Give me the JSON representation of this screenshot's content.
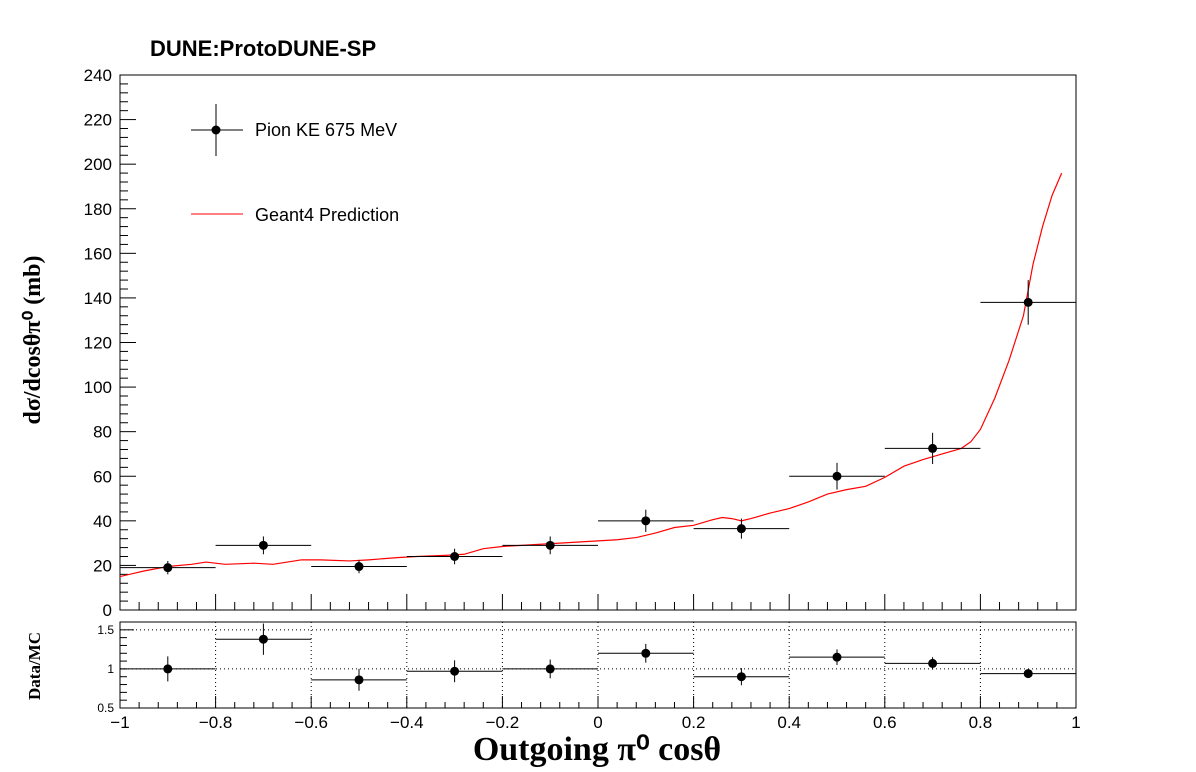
{
  "chart_data": [
    {
      "type": "scatter",
      "title": "DUNE:ProtoDUNE-SP",
      "xlabel": "Outgoing  π⁰ cosθ",
      "ylabel": "dσ/dcosθπ⁰ (mb)",
      "xlim": [
        -1,
        1
      ],
      "ylim": [
        0,
        240
      ],
      "x_ticks": [
        "−1",
        "−0.8",
        "−0.6",
        "−0.4",
        "−0.2",
        "0",
        "0.2",
        "0.4",
        "0.6",
        "0.8",
        "1"
      ],
      "y_ticks": [
        "0",
        "20",
        "40",
        "60",
        "80",
        "100",
        "120",
        "140",
        "160",
        "180",
        "200",
        "220",
        "240"
      ],
      "legend": {
        "placement": "top-left",
        "entries": [
          "Pion KE 675 MeV",
          "Geant4 Prediction"
        ]
      },
      "series": [
        {
          "name": "Pion KE 675 MeV",
          "color": "#000000",
          "x": [
            -0.9,
            -0.7,
            -0.5,
            -0.3,
            -0.1,
            0.1,
            0.3,
            0.5,
            0.7,
            0.9
          ],
          "y": [
            19,
            29,
            19.5,
            24,
            29,
            40,
            36.5,
            60,
            72.5,
            138
          ],
          "x_err": [
            0.1,
            0.1,
            0.1,
            0.1,
            0.1,
            0.1,
            0.1,
            0.1,
            0.1,
            0.1
          ],
          "y_err": [
            3,
            4,
            3,
            3.5,
            4,
            5,
            4.5,
            6,
            7,
            10
          ]
        },
        {
          "name": "Geant4 Prediction",
          "color": "#ff0000",
          "x": [
            -1.0,
            -0.95,
            -0.9,
            -0.85,
            -0.82,
            -0.78,
            -0.72,
            -0.68,
            -0.62,
            -0.58,
            -0.52,
            -0.48,
            -0.42,
            -0.38,
            -0.32,
            -0.28,
            -0.24,
            -0.2,
            -0.16,
            -0.12,
            -0.08,
            -0.04,
            0.0,
            0.04,
            0.08,
            0.12,
            0.16,
            0.2,
            0.24,
            0.26,
            0.28,
            0.3,
            0.32,
            0.36,
            0.4,
            0.44,
            0.48,
            0.52,
            0.56,
            0.6,
            0.64,
            0.68,
            0.72,
            0.76,
            0.78,
            0.8,
            0.83,
            0.86,
            0.89,
            0.91,
            0.93,
            0.95,
            0.97
          ],
          "y": [
            15,
            17.5,
            19.5,
            20.5,
            21.5,
            20.5,
            21,
            20.5,
            22.5,
            22.5,
            22,
            22.5,
            23.5,
            24,
            24.5,
            25,
            27.5,
            28.5,
            29,
            29.5,
            30,
            30.5,
            31,
            31.5,
            32.5,
            34.5,
            37,
            38,
            40.5,
            41.5,
            41,
            40,
            41,
            43.5,
            45.5,
            48.5,
            52,
            54,
            55.5,
            59.5,
            64.5,
            67.5,
            70,
            72.5,
            75.5,
            81,
            95,
            112,
            132,
            155,
            172,
            186,
            196
          ]
        }
      ]
    },
    {
      "type": "scatter",
      "ylabel": "Data/MC",
      "xlim": [
        -1,
        1
      ],
      "ylim": [
        0.5,
        1.6
      ],
      "y_ticks": [
        "0.5",
        "1",
        "1.5"
      ],
      "grid": true,
      "series": [
        {
          "color": "#000000",
          "x": [
            -0.9,
            -0.7,
            -0.5,
            -0.3,
            -0.1,
            0.1,
            0.3,
            0.5,
            0.7,
            0.9
          ],
          "y": [
            1.0,
            1.38,
            0.86,
            0.97,
            1.0,
            1.2,
            0.9,
            1.15,
            1.07,
            0.94
          ],
          "x_err": [
            0.1,
            0.1,
            0.1,
            0.1,
            0.1,
            0.1,
            0.1,
            0.1,
            0.1,
            0.1
          ],
          "y_err": [
            0.16,
            0.2,
            0.14,
            0.14,
            0.12,
            0.12,
            0.11,
            0.1,
            0.08,
            0.05
          ]
        }
      ]
    }
  ]
}
